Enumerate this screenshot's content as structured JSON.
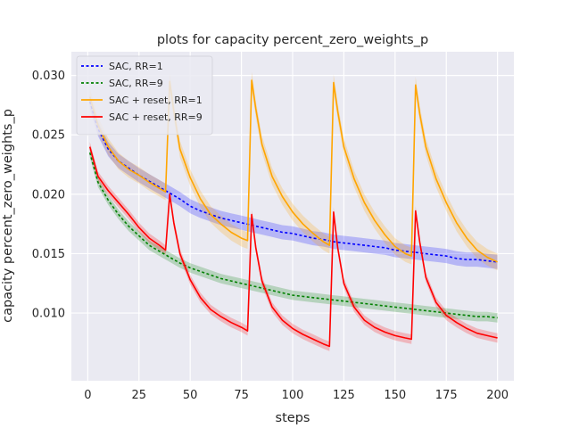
{
  "chart_data": {
    "type": "line",
    "title": "plots for capacity percent_zero_weights_p",
    "xlabel": "steps",
    "ylabel": "capacity percent_zero_weights_p",
    "xlim": [
      -8,
      208
    ],
    "ylim": [
      0.0043,
      0.032
    ],
    "xticks": [
      0,
      25,
      50,
      75,
      100,
      125,
      150,
      175,
      200
    ],
    "yticks": [
      0.01,
      0.015,
      0.02,
      0.025,
      0.03
    ],
    "xtick_labels": [
      "0",
      "25",
      "50",
      "75",
      "100",
      "125",
      "150",
      "175",
      "200"
    ],
    "ytick_labels": [
      "0.010",
      "0.015",
      "0.020",
      "0.025",
      "0.030"
    ],
    "grid": true,
    "background": "#EAEAF2",
    "legend_position": "top-left",
    "series": [
      {
        "name": "SAC, RR=1",
        "color": "#0000FF",
        "style": "dotted",
        "band": 0.0006,
        "x": [
          1,
          5,
          10,
          15,
          20,
          25,
          30,
          35,
          40,
          45,
          50,
          55,
          60,
          65,
          70,
          75,
          80,
          85,
          90,
          95,
          100,
          105,
          110,
          115,
          120,
          125,
          130,
          135,
          140,
          145,
          150,
          155,
          160,
          165,
          170,
          175,
          180,
          185,
          190,
          195,
          200
        ],
        "y": [
          0.0278,
          0.0255,
          0.0238,
          0.0228,
          0.0222,
          0.0216,
          0.0211,
          0.0206,
          0.0201,
          0.0196,
          0.019,
          0.0186,
          0.0183,
          0.018,
          0.0178,
          0.0176,
          0.0174,
          0.0172,
          0.017,
          0.0168,
          0.0167,
          0.0165,
          0.0163,
          0.0162,
          0.016,
          0.0159,
          0.0158,
          0.0157,
          0.0156,
          0.0155,
          0.0153,
          0.0152,
          0.0151,
          0.015,
          0.0149,
          0.0148,
          0.0146,
          0.0145,
          0.0145,
          0.0144,
          0.0143
        ]
      },
      {
        "name": "SAC, RR=9",
        "color": "#008000",
        "style": "dotted",
        "band": 0.0004,
        "x": [
          1,
          5,
          10,
          15,
          20,
          25,
          30,
          35,
          40,
          45,
          50,
          55,
          60,
          65,
          70,
          75,
          80,
          85,
          90,
          95,
          100,
          105,
          110,
          115,
          120,
          125,
          130,
          135,
          140,
          145,
          150,
          155,
          160,
          165,
          170,
          175,
          180,
          185,
          190,
          195,
          200
        ],
        "y": [
          0.0235,
          0.021,
          0.0195,
          0.0183,
          0.0173,
          0.0165,
          0.0157,
          0.0152,
          0.0147,
          0.0142,
          0.0138,
          0.0135,
          0.0132,
          0.0129,
          0.0127,
          0.0125,
          0.0123,
          0.0121,
          0.0119,
          0.0117,
          0.0115,
          0.0114,
          0.0113,
          0.0112,
          0.0111,
          0.011,
          0.0109,
          0.0108,
          0.0107,
          0.0106,
          0.0105,
          0.0104,
          0.0103,
          0.0102,
          0.0101,
          0.01,
          0.0099,
          0.0098,
          0.0097,
          0.0097,
          0.0096
        ]
      },
      {
        "name": "SAC + reset, RR=1",
        "color": "#FFA500",
        "style": "solid",
        "band": 0.0007,
        "x": [
          1,
          5,
          10,
          15,
          20,
          25,
          30,
          35,
          38,
          40,
          42,
          45,
          50,
          55,
          60,
          65,
          70,
          75,
          78,
          80,
          82,
          85,
          90,
          95,
          100,
          105,
          110,
          115,
          118,
          120,
          122,
          125,
          130,
          135,
          140,
          145,
          150,
          155,
          158,
          160,
          162,
          165,
          170,
          175,
          180,
          185,
          190,
          195,
          200
        ],
        "y": [
          0.0282,
          0.0258,
          0.024,
          0.0228,
          0.0221,
          0.0216,
          0.021,
          0.0205,
          0.0202,
          0.0295,
          0.027,
          0.0238,
          0.0214,
          0.0196,
          0.0183,
          0.0175,
          0.0168,
          0.0163,
          0.0161,
          0.0296,
          0.0272,
          0.0242,
          0.0215,
          0.0198,
          0.0185,
          0.0175,
          0.0167,
          0.016,
          0.0157,
          0.0294,
          0.027,
          0.024,
          0.0213,
          0.0193,
          0.0178,
          0.0166,
          0.0156,
          0.015,
          0.0148,
          0.0292,
          0.0268,
          0.024,
          0.0213,
          0.0193,
          0.0176,
          0.0163,
          0.0153,
          0.0147,
          0.0143
        ]
      },
      {
        "name": "SAC + reset, RR=9",
        "color": "#FF0000",
        "style": "solid",
        "band": 0.0004,
        "x": [
          1,
          5,
          10,
          15,
          20,
          25,
          30,
          35,
          38,
          40,
          42,
          45,
          50,
          55,
          60,
          65,
          70,
          75,
          78,
          80,
          82,
          85,
          90,
          95,
          100,
          105,
          110,
          115,
          118,
          120,
          122,
          125,
          130,
          135,
          140,
          145,
          150,
          155,
          158,
          160,
          162,
          165,
          170,
          175,
          180,
          185,
          190,
          195,
          200
        ],
        "y": [
          0.024,
          0.0215,
          0.0203,
          0.0193,
          0.0183,
          0.0172,
          0.0163,
          0.0157,
          0.0153,
          0.02,
          0.0176,
          0.015,
          0.0128,
          0.0113,
          0.0103,
          0.0097,
          0.0092,
          0.0088,
          0.0085,
          0.0183,
          0.0155,
          0.0127,
          0.0105,
          0.0094,
          0.0087,
          0.0082,
          0.0078,
          0.0074,
          0.0072,
          0.0185,
          0.0155,
          0.0125,
          0.0105,
          0.0094,
          0.0088,
          0.0084,
          0.0081,
          0.0079,
          0.0078,
          0.0186,
          0.016,
          0.013,
          0.0109,
          0.0098,
          0.0092,
          0.0087,
          0.0083,
          0.0081,
          0.0079
        ]
      }
    ]
  }
}
